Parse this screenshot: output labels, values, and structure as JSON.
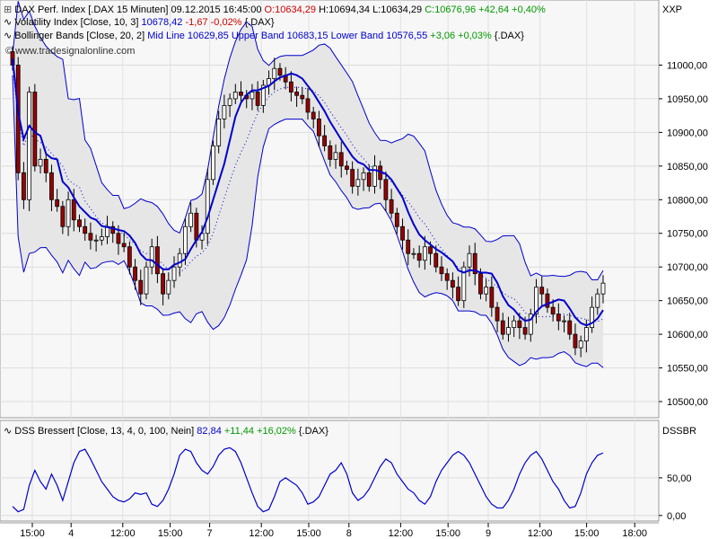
{
  "chart_data": [
    {
      "type": "candlestick",
      "header": {
        "instrument": "DAX Perf. Index [.DAX  15 Minuten]",
        "datetime": "09.12.2015 16:45:00",
        "open": "O:10634,29",
        "high": "H:10694,34",
        "low": "L:10634,29",
        "close": "C:10676,96",
        "change": "+42,64 +0,40%"
      },
      "watermark": "www.tradesignalonline.com",
      "axis_tag": "XXP",
      "y_ticks": [
        10500,
        10550,
        10600,
        10650,
        10700,
        10750,
        10800,
        10850,
        10900,
        10950,
        11000
      ],
      "y_tick_labels": [
        "10500,00",
        "10550,00",
        "10600,00",
        "10650,00",
        "10700,00",
        "10750,00",
        "10800,00",
        "10850,00",
        "10900,00",
        "10950,00",
        "11000,00"
      ],
      "ylim": [
        10480,
        11030
      ],
      "indicators": [
        {
          "name": "Volatility Index [Close, 10, 3]",
          "value": "10678,42",
          "change": "-1,67 -0,02%",
          "symbol": "{.DAX}",
          "color": "#0000cc"
        },
        {
          "name": "Bollinger Bands [Close, 20, 2]",
          "mid_label": "Mid Line 10629,85",
          "upper_label": "Upper Band 10683,15",
          "lower_label": "Lower Band 10576,55",
          "change": "+3,06 +0,03%",
          "symbol": "{.DAX}"
        }
      ],
      "x_ticks": [
        {
          "label": "15:00",
          "x": 0.045
        },
        {
          "label": "4",
          "x": 0.099
        },
        {
          "label": "12:00",
          "x": 0.171
        },
        {
          "label": "15:00",
          "x": 0.237
        },
        {
          "label": "7",
          "x": 0.292
        },
        {
          "label": "12:00",
          "x": 0.364
        },
        {
          "label": "15:00",
          "x": 0.43
        },
        {
          "label": "8",
          "x": 0.486
        },
        {
          "label": "12:00",
          "x": 0.558
        },
        {
          "label": "15:00",
          "x": 0.624
        },
        {
          "label": "9",
          "x": 0.68
        },
        {
          "label": "12:00",
          "x": 0.752
        },
        {
          "label": "15:00",
          "x": 0.817
        },
        {
          "label": "18:00",
          "x": 0.884
        }
      ],
      "close_path": [
        [
          0,
          11000
        ],
        [
          1,
          10840
        ],
        [
          2,
          10800
        ],
        [
          3,
          10960
        ],
        [
          4,
          10850
        ],
        [
          5,
          10860
        ],
        [
          6,
          10840
        ],
        [
          7,
          10800
        ],
        [
          8,
          10790
        ],
        [
          9,
          10760
        ],
        [
          10,
          10800
        ],
        [
          11,
          10770
        ],
        [
          12,
          10760
        ],
        [
          13,
          10750
        ],
        [
          14,
          10740
        ],
        [
          15,
          10740
        ],
        [
          16,
          10745
        ],
        [
          17,
          10760
        ],
        [
          18,
          10750
        ],
        [
          19,
          10735
        ],
        [
          20,
          10730
        ],
        [
          21,
          10700
        ],
        [
          22,
          10680
        ],
        [
          23,
          10660
        ],
        [
          24,
          10700
        ],
        [
          25,
          10730
        ],
        [
          26,
          10690
        ],
        [
          27,
          10660
        ],
        [
          28,
          10680
        ],
        [
          29,
          10700
        ],
        [
          30,
          10720
        ],
        [
          31,
          10760
        ],
        [
          32,
          10780
        ],
        [
          33,
          10740
        ],
        [
          34,
          10750
        ],
        [
          35,
          10830
        ],
        [
          36,
          10880
        ],
        [
          37,
          10920
        ],
        [
          38,
          10940
        ],
        [
          39,
          10950
        ],
        [
          40,
          10960
        ],
        [
          41,
          10955
        ],
        [
          42,
          10950
        ],
        [
          43,
          10960
        ],
        [
          44,
          10940
        ],
        [
          45,
          10970
        ],
        [
          46,
          10980
        ],
        [
          47,
          10995
        ],
        [
          48,
          10985
        ],
        [
          49,
          10975
        ],
        [
          50,
          10960
        ],
        [
          51,
          10955
        ],
        [
          52,
          10950
        ],
        [
          53,
          10930
        ],
        [
          54,
          10920
        ],
        [
          55,
          10895
        ],
        [
          56,
          10880
        ],
        [
          57,
          10860
        ],
        [
          58,
          10870
        ],
        [
          59,
          10850
        ],
        [
          60,
          10845
        ],
        [
          61,
          10820
        ],
        [
          62,
          10830
        ],
        [
          63,
          10840
        ],
        [
          64,
          10820
        ],
        [
          65,
          10850
        ],
        [
          66,
          10830
        ],
        [
          67,
          10800
        ],
        [
          68,
          10780
        ],
        [
          69,
          10760
        ],
        [
          70,
          10740
        ],
        [
          71,
          10720
        ],
        [
          72,
          10720
        ],
        [
          73,
          10710
        ],
        [
          74,
          10730
        ],
        [
          75,
          10720
        ],
        [
          76,
          10700
        ],
        [
          77,
          10690
        ],
        [
          78,
          10680
        ],
        [
          79,
          10670
        ],
        [
          80,
          10650
        ],
        [
          81,
          10700
        ],
        [
          82,
          10720
        ],
        [
          83,
          10690
        ],
        [
          84,
          10660
        ],
        [
          85,
          10670
        ],
        [
          86,
          10640
        ],
        [
          87,
          10620
        ],
        [
          88,
          10600
        ],
        [
          89,
          10610
        ],
        [
          90,
          10620
        ],
        [
          91,
          10610
        ],
        [
          92,
          10600
        ],
        [
          93,
          10630
        ],
        [
          94,
          10670
        ],
        [
          95,
          10660
        ],
        [
          96,
          10640
        ],
        [
          97,
          10630
        ],
        [
          98,
          10620
        ],
        [
          99,
          10620
        ],
        [
          100,
          10600
        ],
        [
          101,
          10580
        ],
        [
          102,
          10590
        ],
        [
          103,
          10610
        ],
        [
          104,
          10640
        ],
        [
          105,
          10660
        ],
        [
          106,
          10676
        ]
      ],
      "candle_count": 107
    },
    {
      "type": "line",
      "title": "DSS Bressert [Close, 13, 4, 0, 100, Nein]",
      "value": "82,84",
      "change": "+11,44 +16,02%",
      "symbol": "{.DAX}",
      "axis_tag": "DSSBR",
      "y_ticks": [
        0,
        50
      ],
      "y_tick_labels": [
        "0,00",
        "50,00"
      ],
      "ylim": [
        -5,
        100
      ],
      "series": [
        {
          "values": [
            12,
            5,
            8,
            40,
            60,
            45,
            35,
            55,
            40,
            20,
            45,
            70,
            85,
            88,
            75,
            60,
            45,
            35,
            25,
            20,
            18,
            22,
            30,
            28,
            30,
            15,
            12,
            20,
            35,
            55,
            80,
            88,
            85,
            70,
            60,
            55,
            65,
            80,
            88,
            90,
            85,
            70,
            50,
            30,
            12,
            5,
            8,
            25,
            45,
            50,
            45,
            40,
            30,
            15,
            18,
            25,
            40,
            55,
            60,
            70,
            55,
            30,
            20,
            25,
            35,
            50,
            65,
            75,
            70,
            55,
            45,
            35,
            30,
            20,
            15,
            25,
            45,
            60,
            70,
            80,
            85,
            80,
            70,
            55,
            40,
            25,
            15,
            10,
            10,
            20,
            35,
            55,
            70,
            80,
            85,
            75,
            60,
            45,
            35,
            20,
            10,
            12,
            30,
            55,
            70,
            80,
            83
          ]
        }
      ]
    }
  ]
}
